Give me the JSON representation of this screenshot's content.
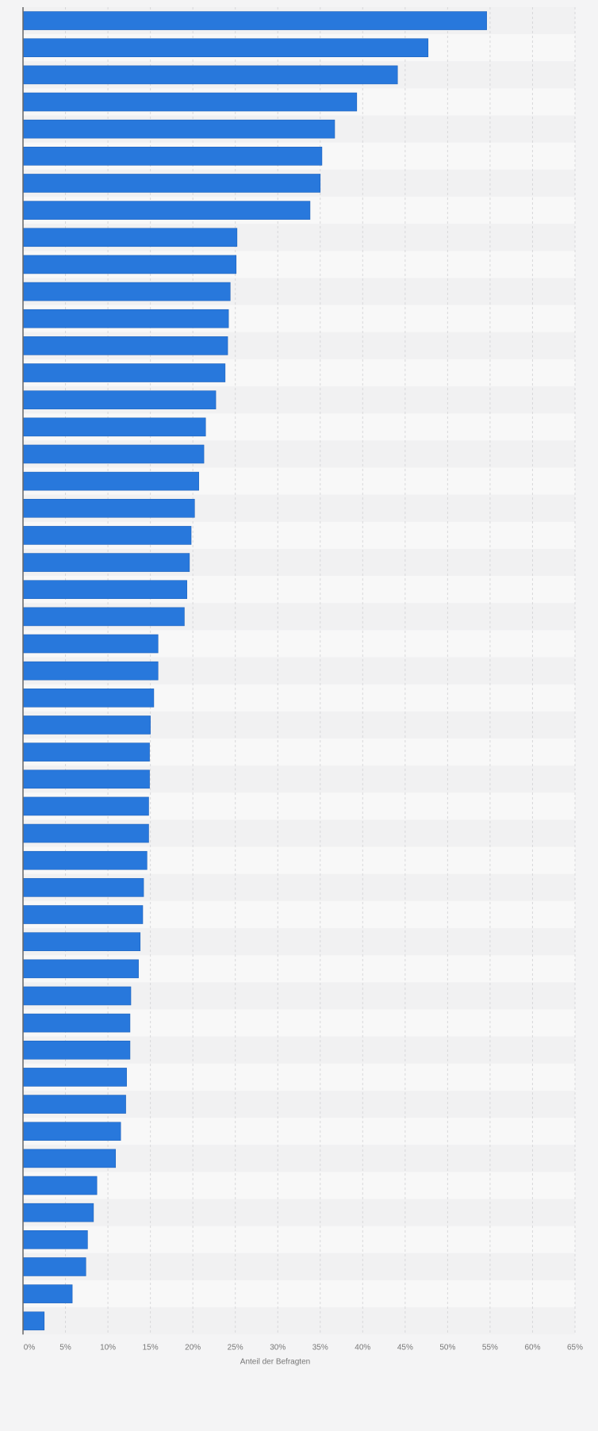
{
  "chart_data": {
    "type": "bar",
    "orientation": "horizontal",
    "xlabel": "Anteil der Befragten",
    "xlim": [
      0,
      65
    ],
    "tick_values": [
      0,
      5,
      10,
      15,
      20,
      25,
      30,
      35,
      40,
      45,
      50,
      55,
      60,
      65
    ],
    "tick_labels": [
      "0%",
      "5%",
      "10%",
      "15%",
      "20%",
      "25%",
      "30%",
      "35%",
      "40%",
      "45%",
      "50%",
      "55%",
      "60%",
      "65%"
    ],
    "values": [
      54.6,
      47.7,
      44.1,
      39.3,
      36.7,
      35.2,
      35.0,
      33.8,
      25.2,
      25.1,
      24.4,
      24.2,
      24.1,
      23.8,
      22.7,
      21.5,
      21.3,
      20.7,
      20.2,
      19.8,
      19.6,
      19.3,
      19.0,
      15.9,
      15.9,
      15.4,
      15.0,
      14.9,
      14.9,
      14.8,
      14.8,
      14.6,
      14.2,
      14.1,
      13.8,
      13.6,
      12.7,
      12.6,
      12.6,
      12.2,
      12.1,
      11.5,
      10.9,
      8.7,
      8.3,
      7.6,
      7.4,
      5.8,
      2.5
    ],
    "grid": true,
    "legend": "none",
    "colors": {
      "bar": "#2878dc",
      "bar_edge": "#1f63bc",
      "band_light": "#f8f8f8",
      "band_dark": "#f1f1f2",
      "grid": "#d8d8da",
      "axis": "#666666",
      "tick_text": "#777777",
      "page_bg": "#f4f4f5"
    }
  }
}
